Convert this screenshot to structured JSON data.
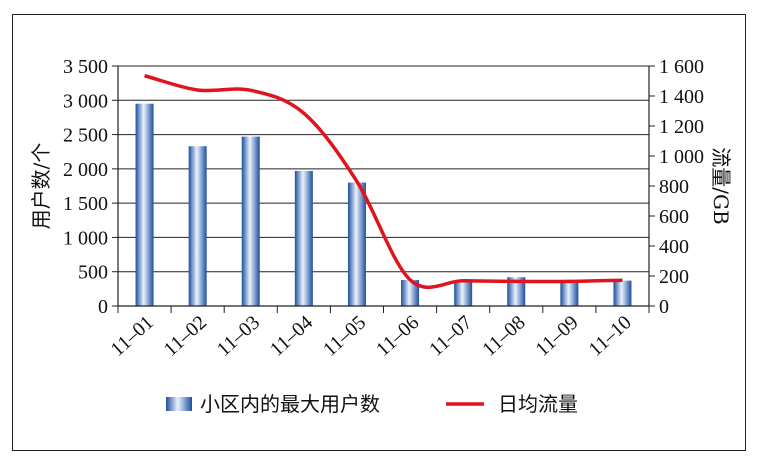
{
  "chart_data": {
    "type": "bar",
    "categories": [
      "11–01",
      "11–02",
      "11–03",
      "11–04",
      "11–05",
      "11–06",
      "11–07",
      "11–08",
      "11–09",
      "11–10"
    ],
    "series": [
      {
        "name": "小区内的最大用户数",
        "type": "bar",
        "axis": "left",
        "values": [
          2950,
          2330,
          2470,
          1970,
          1800,
          380,
          350,
          420,
          350,
          370
        ]
      },
      {
        "name": "日均流量",
        "type": "line",
        "axis": "right",
        "color": "#e0141e",
        "values": [
          1535,
          1440,
          1438,
          1285,
          830,
          175,
          168,
          164,
          164,
          172
        ]
      }
    ],
    "ylabel": "用户数/个",
    "y2label": "流量/GB",
    "ylim": [
      0,
      3500
    ],
    "y2lim": [
      0,
      1600
    ],
    "yticks": [
      "0",
      "500",
      "1 000",
      "1 500",
      "2 000",
      "2 500",
      "3 000",
      "3 500"
    ],
    "y2ticks": [
      "0",
      "200",
      "400",
      "600",
      "800",
      "1 000",
      "1 200",
      "1 400",
      "1 600"
    ],
    "grid": true,
    "legend_position": "bottom",
    "colors": {
      "bar": "#3a76c4",
      "line": "#e0141e"
    }
  }
}
